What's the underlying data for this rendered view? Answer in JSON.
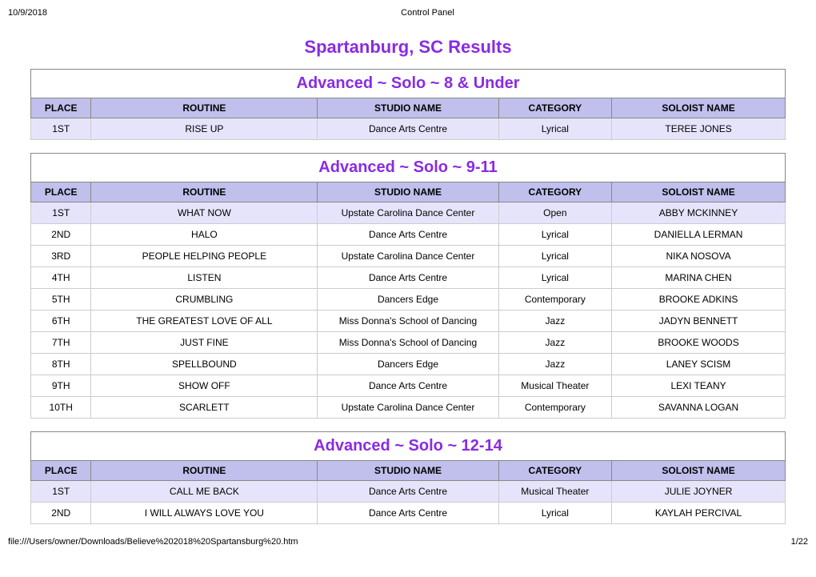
{
  "header": {
    "date": "10/9/2018",
    "title": "Control Panel"
  },
  "footer": {
    "path": "file:///Users/owner/Downloads/Believe%202018%20Spartansburg%20.htm",
    "page": "1/22"
  },
  "page_title": "Spartanburg, SC Results",
  "columns": [
    "PLACE",
    "ROUTINE",
    "STUDIO NAME",
    "CATEGORY",
    "SOLOIST NAME"
  ],
  "groups": [
    {
      "title": "Advanced ~ Solo ~ 8 & Under",
      "rows": [
        {
          "hl": true,
          "c": [
            "1ST",
            "RISE UP",
            "Dance Arts Centre",
            "Lyrical",
            "TEREE JONES"
          ]
        }
      ]
    },
    {
      "title": "Advanced ~ Solo ~ 9-11",
      "rows": [
        {
          "hl": true,
          "c": [
            "1ST",
            "WHAT NOW",
            "Upstate Carolina Dance Center",
            "Open",
            "ABBY MCKINNEY"
          ]
        },
        {
          "hl": false,
          "c": [
            "2ND",
            "HALO",
            "Dance Arts Centre",
            "Lyrical",
            "DANIELLA LERMAN"
          ]
        },
        {
          "hl": false,
          "c": [
            "3RD",
            "PEOPLE HELPING PEOPLE",
            "Upstate Carolina Dance Center",
            "Lyrical",
            "NIKA NOSOVA"
          ]
        },
        {
          "hl": false,
          "c": [
            "4TH",
            "LISTEN",
            "Dance Arts Centre",
            "Lyrical",
            "MARINA CHEN"
          ]
        },
        {
          "hl": false,
          "c": [
            "5TH",
            "CRUMBLING",
            "Dancers Edge",
            "Contemporary",
            "BROOKE ADKINS"
          ]
        },
        {
          "hl": false,
          "c": [
            "6TH",
            "THE GREATEST LOVE OF ALL",
            "Miss Donna's School of Dancing",
            "Jazz",
            "JADYN BENNETT"
          ]
        },
        {
          "hl": false,
          "c": [
            "7TH",
            "JUST FINE",
            "Miss Donna's School of Dancing",
            "Jazz",
            "BROOKE WOODS"
          ]
        },
        {
          "hl": false,
          "c": [
            "8TH",
            "SPELLBOUND",
            "Dancers Edge",
            "Jazz",
            "LANEY SCISM"
          ]
        },
        {
          "hl": false,
          "c": [
            "9TH",
            "SHOW OFF",
            "Dance Arts Centre",
            "Musical Theater",
            "LEXI TEANY"
          ]
        },
        {
          "hl": false,
          "c": [
            "10TH",
            "SCARLETT",
            "Upstate Carolina Dance Center",
            "Contemporary",
            "SAVANNA LOGAN"
          ]
        }
      ]
    },
    {
      "title": "Advanced ~ Solo ~ 12-14",
      "rows": [
        {
          "hl": true,
          "c": [
            "1ST",
            "CALL ME BACK",
            "Dance Arts Centre",
            "Musical Theater",
            "JULIE JOYNER"
          ]
        },
        {
          "hl": false,
          "c": [
            "2ND",
            "I WILL ALWAYS LOVE YOU",
            "Dance Arts Centre",
            "Lyrical",
            "KAYLAH PERCIVAL"
          ]
        }
      ]
    }
  ]
}
